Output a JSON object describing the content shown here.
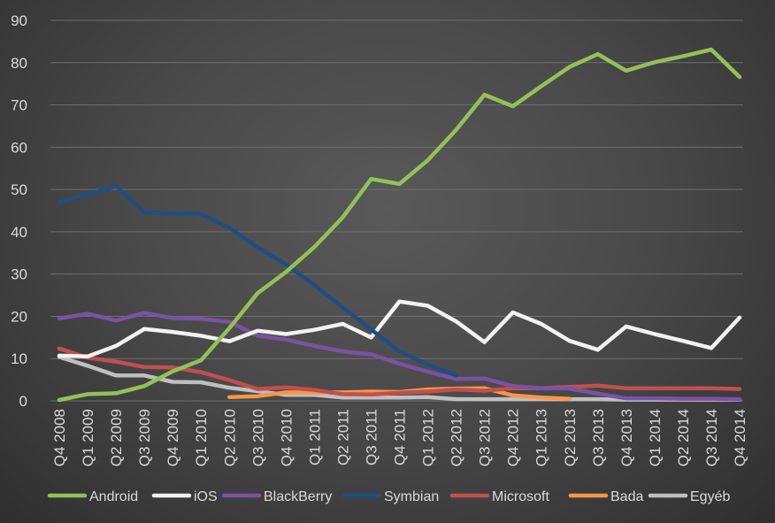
{
  "chart_data": {
    "type": "line",
    "title": "",
    "xlabel": "",
    "ylabel": "",
    "ylim": [
      0,
      90
    ],
    "yticks": [
      0,
      10,
      20,
      30,
      40,
      50,
      60,
      70,
      80,
      90
    ],
    "grid": true,
    "legend_position": "bottom",
    "categories": [
      "Q4 2008",
      "Q1 2009",
      "Q2 2009",
      "Q3 2009",
      "Q4 2009",
      "Q1 2010",
      "Q2 2010",
      "Q3 2010",
      "Q4 2010",
      "Q1 2011",
      "Q2 2011",
      "Q3 2011",
      "Q4 2011",
      "Q1 2012",
      "Q2 2012",
      "Q3 2012",
      "Q4 2012",
      "Q1 2013",
      "Q2 2013",
      "Q3 2013",
      "Q4 2013",
      "Q1 2014",
      "Q2 2014",
      "Q3 2014",
      "Q4 2014"
    ],
    "series": [
      {
        "name": "Android",
        "color": "#92c157",
        "values": [
          0.2,
          1.6,
          1.8,
          3.5,
          7.0,
          9.6,
          17.2,
          25.5,
          30.5,
          36.4,
          43.4,
          52.5,
          51.3,
          56.9,
          64.1,
          72.4,
          69.7,
          74.4,
          79.0,
          82.0,
          78.1,
          80.1,
          81.5,
          83.1,
          76.6
        ]
      },
      {
        "name": "iOS",
        "color": "#f2f2f2",
        "values": [
          10.7,
          10.5,
          13.0,
          17.0,
          16.3,
          15.4,
          14.1,
          16.6,
          15.8,
          16.8,
          18.2,
          15.0,
          23.5,
          22.5,
          18.8,
          13.9,
          20.9,
          18.2,
          14.2,
          12.1,
          17.6,
          15.8,
          14.2,
          12.5,
          19.7
        ]
      },
      {
        "name": "BlackBerry",
        "color": "#7a52a3",
        "values": [
          19.5,
          20.6,
          19.0,
          20.8,
          19.6,
          19.4,
          18.7,
          15.4,
          14.5,
          13.0,
          11.7,
          11.0,
          8.8,
          6.9,
          5.2,
          5.3,
          3.5,
          3.0,
          2.9,
          1.7,
          0.6,
          0.6,
          0.5,
          0.5,
          0.4
        ]
      },
      {
        "name": "Symbian",
        "color": "#1f4e82",
        "values": [
          47.1,
          48.8,
          50.8,
          44.6,
          44.3,
          44.2,
          40.9,
          36.3,
          32.3,
          27.4,
          22.1,
          16.9,
          11.7,
          8.6,
          6.0,
          null,
          null,
          null,
          null,
          null,
          null,
          null,
          null,
          null,
          null
        ]
      },
      {
        "name": "Microsoft",
        "color": "#c0504d",
        "values": [
          12.4,
          10.2,
          9.3,
          8.0,
          7.9,
          6.8,
          4.9,
          2.8,
          3.2,
          2.6,
          1.6,
          1.5,
          1.9,
          2.2,
          2.7,
          2.4,
          3.0,
          3.0,
          3.3,
          3.6,
          3.0,
          3.0,
          3.0,
          3.0,
          2.8
        ]
      },
      {
        "name": "Bada",
        "color": "#f79646",
        "values": [
          null,
          null,
          null,
          null,
          null,
          null,
          0.9,
          1.1,
          2.0,
          2.0,
          2.0,
          2.2,
          2.1,
          2.7,
          2.9,
          3.0,
          1.3,
          0.8,
          0.5,
          null,
          null,
          null,
          null,
          null,
          null
        ]
      },
      {
        "name": "Egyéb",
        "color": "#bfbfbf",
        "values": [
          10.4,
          8.3,
          6.0,
          6.0,
          4.5,
          4.4,
          3.1,
          2.3,
          1.4,
          1.4,
          0.8,
          0.8,
          0.8,
          0.9,
          0.4,
          0.4,
          0.4,
          0.4,
          0.4,
          0.4,
          0.3,
          0.3,
          0.3,
          0.3,
          0.3
        ]
      }
    ]
  }
}
